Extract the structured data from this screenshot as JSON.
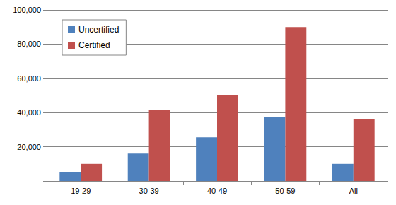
{
  "chart_data": {
    "type": "bar",
    "categories": [
      "19-29",
      "30-39",
      "40-49",
      "50-59",
      "All"
    ],
    "series": [
      {
        "name": "Uncertified",
        "color": "#4f81bd",
        "values": [
          5000,
          16000,
          25500,
          37500,
          10000
        ]
      },
      {
        "name": "Certified",
        "color": "#c0504d",
        "values": [
          10000,
          41500,
          50000,
          90000,
          36000
        ]
      }
    ],
    "ylim": [
      0,
      100000
    ],
    "yticks": [
      {
        "value": 0,
        "label": "-"
      },
      {
        "value": 20000,
        "label": "20,000"
      },
      {
        "value": 40000,
        "label": "40,000"
      },
      {
        "value": 60000,
        "label": "60,000"
      },
      {
        "value": 80000,
        "label": "80,000"
      },
      {
        "value": 100000,
        "label": "100,000"
      }
    ],
    "grid": true,
    "legend": "upper left"
  }
}
